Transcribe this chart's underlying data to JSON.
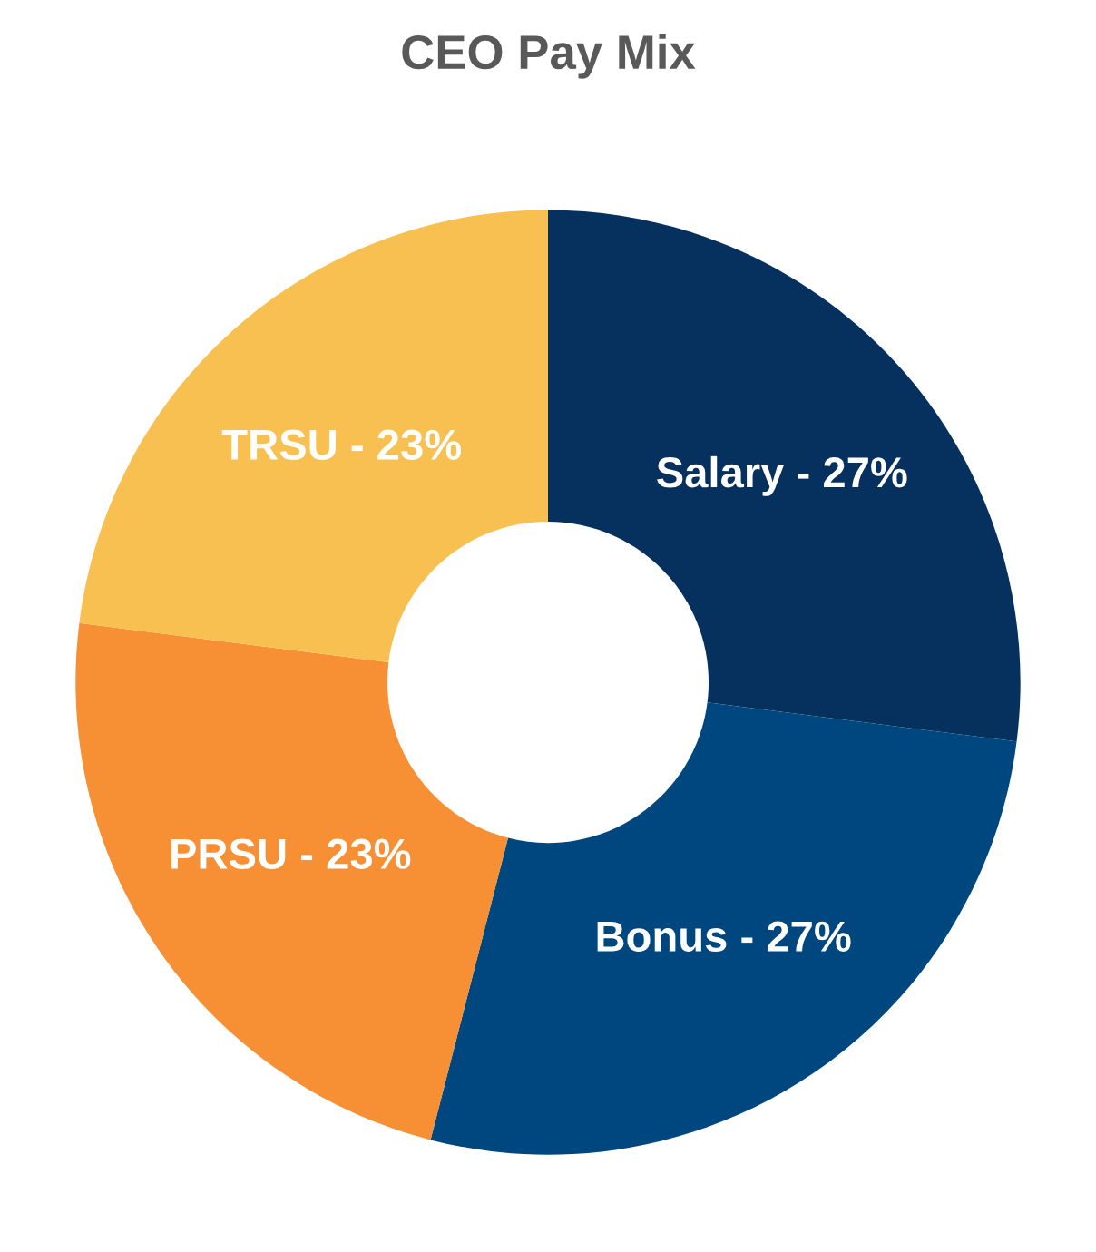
{
  "chart_data": {
    "type": "donut",
    "title": "CEO Pay Mix",
    "categories": [
      "Salary - 27%",
      "Bonus - 27%",
      "PRSU - 23%",
      "TRSU - 23%"
    ],
    "values": [
      27,
      27,
      23,
      23
    ],
    "colors": [
      "#06305e",
      "#00477f",
      "#f78f34",
      "#f8c050"
    ],
    "legend": false
  }
}
